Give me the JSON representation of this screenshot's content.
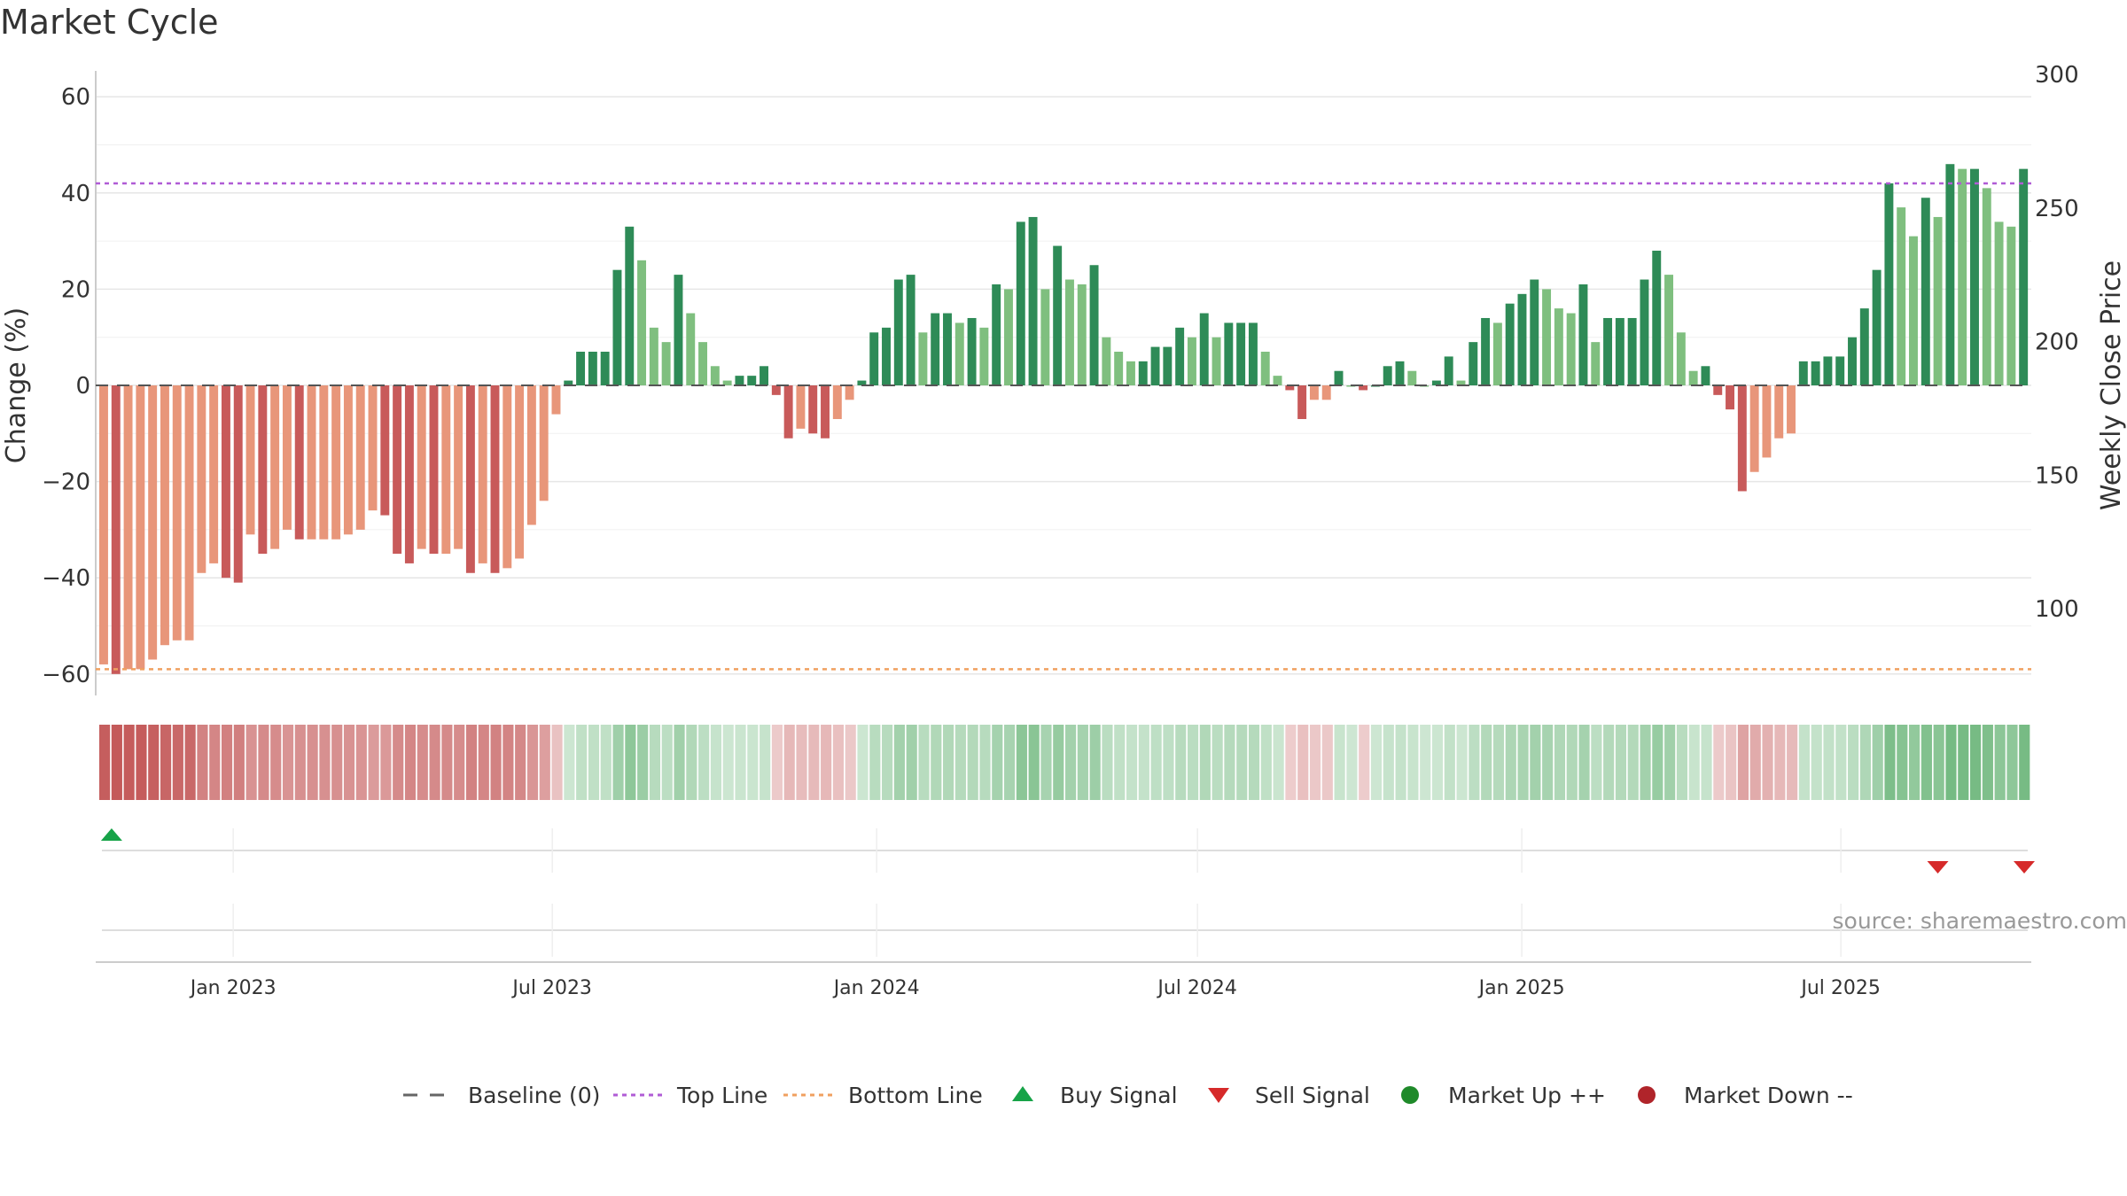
{
  "chart_data": {
    "type": "bar",
    "title": "Market Cycle",
    "ylabel_left": "Change (%)",
    "ylabel_right": "Weekly Close Price",
    "ylim_left": [
      -65,
      65
    ],
    "yticks_left": [
      "60",
      "40",
      "20",
      "0",
      "−20",
      "−40",
      "−60"
    ],
    "yticks_left_values": [
      60,
      40,
      20,
      0,
      -20,
      -40,
      -60
    ],
    "yticks_right": [
      "300",
      "250",
      "200",
      "150",
      "100"
    ],
    "yticks_right_values": [
      300,
      250,
      200,
      150,
      100
    ],
    "x_start": "2022-10-17",
    "x_end": "2025-10-13",
    "weekly_change_pct": [
      -58,
      -60,
      -59,
      -59,
      -57,
      -54,
      -53,
      -53,
      -39,
      -37,
      -40,
      -41,
      -31,
      -35,
      -34,
      -30,
      -32,
      -32,
      -32,
      -32,
      -31,
      -30,
      -26,
      -27,
      -35,
      -37,
      -34,
      -35,
      -35,
      -34,
      -39,
      -37,
      -39,
      -38,
      -36,
      -29,
      -24,
      -6,
      1,
      7,
      7,
      7,
      24,
      33,
      26,
      12,
      9,
      23,
      15,
      9,
      4,
      1,
      2,
      2,
      4,
      -2,
      -11,
      -9,
      -10,
      -11,
      -7,
      -3,
      1,
      11,
      12,
      22,
      23,
      11,
      15,
      15,
      13,
      14,
      12,
      21,
      20,
      34,
      35,
      20,
      29,
      22,
      21,
      25,
      10,
      7,
      5,
      5,
      8,
      8,
      12,
      10,
      15,
      10,
      13,
      13,
      13,
      7,
      2,
      -1,
      -7,
      -3,
      -3,
      3,
      0,
      -1,
      0,
      4,
      5,
      3,
      0,
      1,
      6,
      1,
      9,
      14,
      13,
      17,
      19,
      22,
      20,
      16,
      15,
      21,
      9,
      14,
      14,
      14,
      22,
      28,
      23,
      11,
      3,
      4,
      -2,
      -5,
      -22,
      -18,
      -15,
      -11,
      -10,
      5,
      5,
      6,
      6,
      10,
      16,
      24,
      42,
      37,
      31,
      39,
      35,
      46,
      45,
      45,
      41,
      34,
      33,
      45
    ],
    "top_line": 42,
    "bottom_line": -59,
    "buy_signals": [
      "2022-10-24"
    ],
    "sell_signals": [
      "2025-08-25",
      "2025-10-13"
    ],
    "x_ticks": [
      "Jan 2023",
      "Jul 2023",
      "Jan 2024",
      "Jul 2024",
      "Jan 2025",
      "Jul 2025"
    ],
    "x_tick_dates": [
      "2023-01-01",
      "2023-07-01",
      "2024-01-01",
      "2024-07-01",
      "2025-01-01",
      "2025-07-01"
    ],
    "legend": [
      "Baseline (0)",
      "Top Line",
      "Bottom Line",
      "Buy Signal",
      "Sell Signal",
      "Market Up ++",
      "Market Down --"
    ],
    "legend_position": "bottom",
    "grid": true
  },
  "source": "source: sharemaestro.com",
  "colors": {
    "up_dark": "#2e8b57",
    "up_light": "#7fbf7f",
    "down_dark": "#c85a5a",
    "down_light": "#e8967a",
    "top_line": "#b05cd6",
    "bottom_line": "#f0a060",
    "buy": "#17a348",
    "sell": "#d62a2a",
    "market_up": "#1f8a2a",
    "market_down": "#b0242a"
  }
}
